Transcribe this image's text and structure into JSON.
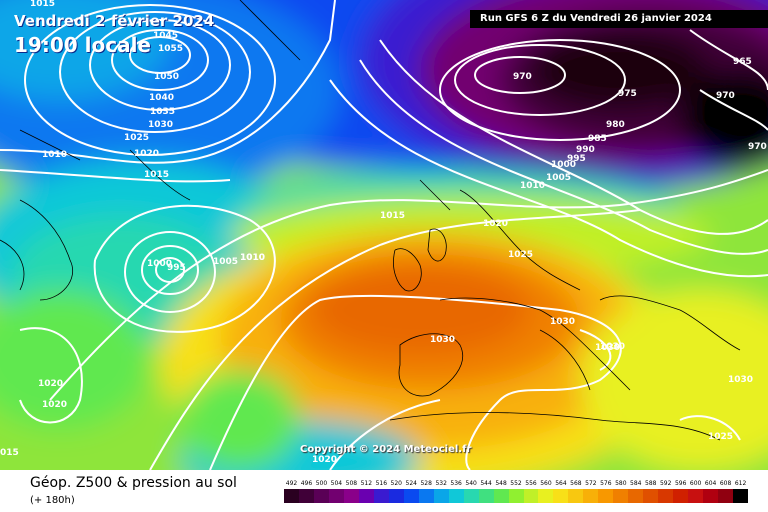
{
  "header": {
    "date_line1": "Vendredi 2 février 2024",
    "date_line2": "19:00 locale",
    "run_info": "Run GFS 6 Z du Vendredi 26 janvier 2024"
  },
  "copyright": "Copyright © 2024 Meteociel.fr",
  "footer": {
    "product": "Géop. Z500 & pression au sol",
    "lead": "(+ 180h)"
  },
  "legend": {
    "values": [
      "492",
      "496",
      "500",
      "504",
      "508",
      "512",
      "516",
      "520",
      "524",
      "528",
      "532",
      "536",
      "540",
      "544",
      "548",
      "552",
      "556",
      "560",
      "564",
      "568",
      "572",
      "576",
      "580",
      "584",
      "588",
      "592",
      "596",
      "600",
      "604",
      "608",
      "612"
    ],
    "colors": [
      "#2a0020",
      "#400038",
      "#5a0056",
      "#720070",
      "#8a008a",
      "#6a00b0",
      "#3a1ad0",
      "#1a2ae0",
      "#0a4af0",
      "#0a78f0",
      "#0aa6e8",
      "#10c8d8",
      "#28d8b0",
      "#40e080",
      "#60e850",
      "#90f030",
      "#c0f028",
      "#e8f020",
      "#f8e018",
      "#f8c810",
      "#f8b008",
      "#f89800",
      "#f08000",
      "#e86800",
      "#e05000",
      "#d83800",
      "#d02000",
      "#c81010",
      "#b00010",
      "#900010",
      "#000000"
    ]
  },
  "pressure_labels": [
    {
      "value": "1015"
    },
    {
      "value": "1045"
    },
    {
      "value": "1055"
    },
    {
      "value": "1050"
    },
    {
      "value": "1040"
    },
    {
      "value": "1035"
    },
    {
      "value": "1030"
    },
    {
      "value": "1025"
    },
    {
      "value": "1020"
    },
    {
      "value": "1015"
    },
    {
      "value": "1010"
    },
    {
      "value": "1010"
    },
    {
      "value": "1000"
    },
    {
      "value": "995"
    },
    {
      "value": "1005"
    },
    {
      "value": "1010"
    },
    {
      "value": "1015"
    },
    {
      "value": "1020"
    },
    {
      "value": "1025"
    },
    {
      "value": "1030"
    },
    {
      "value": "1030"
    },
    {
      "value": "1030"
    },
    {
      "value": "1030"
    },
    {
      "value": "1030"
    },
    {
      "value": "1025"
    },
    {
      "value": "1020"
    },
    {
      "value": "1020"
    },
    {
      "value": "1020"
    },
    {
      "value": "015"
    },
    {
      "value": "970"
    },
    {
      "value": "975"
    },
    {
      "value": "980"
    },
    {
      "value": "985"
    },
    {
      "value": "990"
    },
    {
      "value": "995"
    },
    {
      "value": "1000"
    },
    {
      "value": "1005"
    },
    {
      "value": "1010"
    },
    {
      "value": "965"
    },
    {
      "value": "970"
    },
    {
      "value": "970"
    }
  ]
}
